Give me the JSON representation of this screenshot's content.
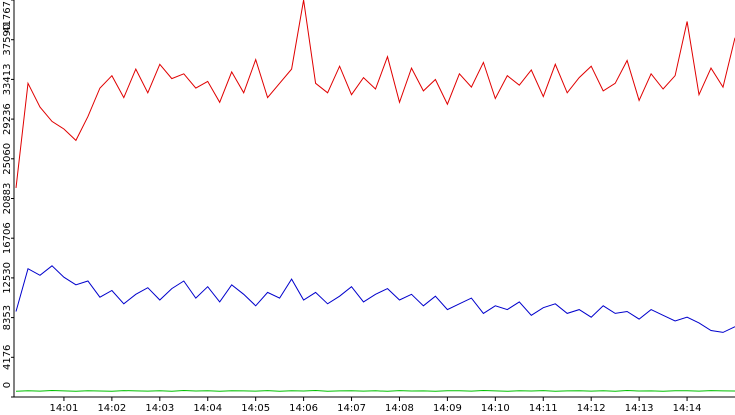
{
  "chart_data": {
    "type": "line",
    "x": [
      "14:00:00",
      "14:00:15",
      "14:00:30",
      "14:00:45",
      "14:01:00",
      "14:01:15",
      "14:01:30",
      "14:01:45",
      "14:02:00",
      "14:02:15",
      "14:02:30",
      "14:02:45",
      "14:03:00",
      "14:03:15",
      "14:03:30",
      "14:03:45",
      "14:04:00",
      "14:04:15",
      "14:04:30",
      "14:04:45",
      "14:05:00",
      "14:05:15",
      "14:05:30",
      "14:05:45",
      "14:06:00",
      "14:06:15",
      "14:06:30",
      "14:06:45",
      "14:07:00",
      "14:07:15",
      "14:07:30",
      "14:07:45",
      "14:08:00",
      "14:08:15",
      "14:08:30",
      "14:08:45",
      "14:09:00",
      "14:09:15",
      "14:09:30",
      "14:09:45",
      "14:10:00",
      "14:10:15",
      "14:10:30",
      "14:10:45",
      "14:11:00",
      "14:11:15",
      "14:11:30",
      "14:11:45",
      "14:12:00",
      "14:12:15",
      "14:12:30",
      "14:12:45",
      "14:13:00",
      "14:13:15",
      "14:13:30",
      "14:13:45",
      "14:14:00",
      "14:14:15",
      "14:14:30",
      "14:14:45",
      "14:15:00"
    ],
    "series": [
      {
        "color": "#e00000",
        "values": [
          22000,
          33000,
          30500,
          29000,
          28200,
          27000,
          29500,
          32500,
          33800,
          31500,
          34500,
          32000,
          35000,
          33500,
          34000,
          32500,
          33200,
          31000,
          34200,
          32000,
          35500,
          31500,
          33000,
          34500,
          41767,
          33000,
          32000,
          34800,
          31800,
          33600,
          32400,
          35800,
          31000,
          34600,
          32200,
          33400,
          30800,
          34000,
          32600,
          35200,
          31400,
          33800,
          32800,
          34400,
          31600,
          35000,
          32000,
          33600,
          34800,
          32200,
          33000,
          35400,
          31200,
          34000,
          32400,
          33800,
          39500,
          31800,
          34600,
          32600,
          37800
        ]
      },
      {
        "color": "#0000cc",
        "values": [
          9000,
          13500,
          12800,
          13800,
          12600,
          11800,
          12200,
          10500,
          11200,
          9800,
          10800,
          11500,
          10200,
          11400,
          12200,
          10400,
          11600,
          10000,
          11800,
          10800,
          9600,
          11000,
          10400,
          12400,
          10200,
          11000,
          9800,
          10600,
          11600,
          10000,
          10800,
          11400,
          10200,
          10800,
          9600,
          10600,
          9200,
          9800,
          10400,
          8800,
          9600,
          9200,
          10000,
          8600,
          9400,
          9800,
          8800,
          9200,
          8400,
          9600,
          8800,
          9000,
          8200,
          9200,
          8600,
          8000,
          8400,
          7800,
          7000,
          6800,
          7400
        ]
      },
      {
        "color": "#00c000",
        "values": [
          600,
          650,
          620,
          680,
          640,
          600,
          660,
          630,
          610,
          670,
          640,
          620,
          650,
          600,
          680,
          630,
          650,
          610,
          660,
          640,
          620,
          670,
          600,
          650,
          630,
          680,
          610,
          640,
          660,
          620,
          650,
          600,
          670,
          630,
          640,
          610,
          660,
          650,
          620,
          680,
          640,
          600,
          650,
          630,
          670,
          610,
          640,
          660,
          620,
          650,
          600,
          680,
          630,
          640,
          610,
          660,
          650,
          620,
          670,
          640,
          630
        ]
      }
    ],
    "xlim": [
      "14:00:00",
      "14:15:00"
    ],
    "xticks": [
      {
        "value": "14:01:00",
        "label": "14:01"
      },
      {
        "value": "14:02:00",
        "label": "14:02"
      },
      {
        "value": "14:03:00",
        "label": "14:03"
      },
      {
        "value": "14:04:00",
        "label": "14:04"
      },
      {
        "value": "14:05:00",
        "label": "14:05"
      },
      {
        "value": "14:06:00",
        "label": "14:06"
      },
      {
        "value": "14:07:00",
        "label": "14:07"
      },
      {
        "value": "14:08:00",
        "label": "14:08"
      },
      {
        "value": "14:09:00",
        "label": "14:09"
      },
      {
        "value": "14:10:00",
        "label": "14:10"
      },
      {
        "value": "14:11:00",
        "label": "14:11"
      },
      {
        "value": "14:12:00",
        "label": "14:12"
      },
      {
        "value": "14:13:00",
        "label": "14:13"
      },
      {
        "value": "14:14:00",
        "label": "14:14"
      }
    ],
    "ylim": [
      0,
      41767
    ],
    "yticks": [
      0,
      4176,
      8353,
      12530,
      16706,
      20883,
      25060,
      29236,
      33413,
      37590,
      41767
    ]
  }
}
